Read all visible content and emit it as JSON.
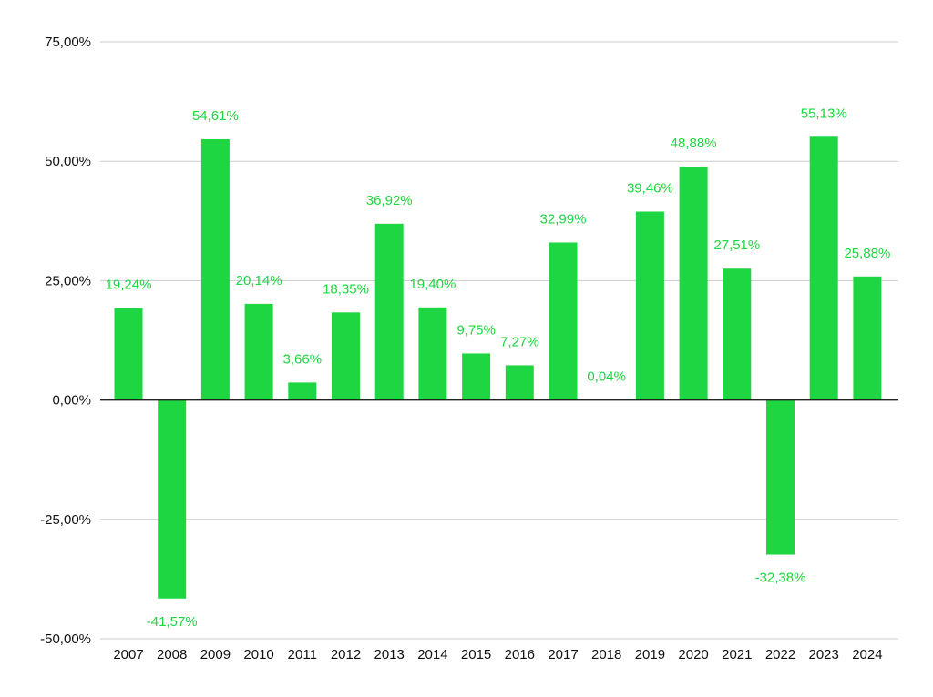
{
  "chart_data": {
    "type": "bar",
    "title": "",
    "xlabel": "",
    "ylabel": "",
    "categories": [
      "2007",
      "2008",
      "2009",
      "2010",
      "2011",
      "2012",
      "2013",
      "2014",
      "2015",
      "2016",
      "2017",
      "2018",
      "2019",
      "2020",
      "2021",
      "2022",
      "2023",
      "2024"
    ],
    "values": [
      19.24,
      -41.57,
      54.61,
      20.14,
      3.66,
      18.35,
      36.92,
      19.4,
      9.75,
      7.27,
      32.99,
      0.04,
      39.46,
      48.88,
      27.51,
      -32.38,
      55.13,
      25.88
    ],
    "data_labels": [
      "19,24%",
      "-41,57%",
      "54,61%",
      "20,14%",
      "3,66%",
      "18,35%",
      "36,92%",
      "19,40%",
      "9,75%",
      "7,27%",
      "32,99%",
      "0,04%",
      "39,46%",
      "48,88%",
      "27,51%",
      "-32,38%",
      "55,13%",
      "25,88%"
    ],
    "ylim": [
      -50,
      75
    ],
    "yticks": [
      75,
      50,
      25,
      0,
      -25,
      -50
    ],
    "ytick_labels": [
      "75,00%",
      "50,00%",
      "25,00%",
      "0,00%",
      "-25,00%",
      "-50,00%"
    ],
    "grid": true,
    "legend": "none",
    "colors": {
      "bar": "#1ed641",
      "label": "#1ed641",
      "grid": "#cccccc",
      "zero_line": "#222222",
      "text": "#111111"
    }
  }
}
